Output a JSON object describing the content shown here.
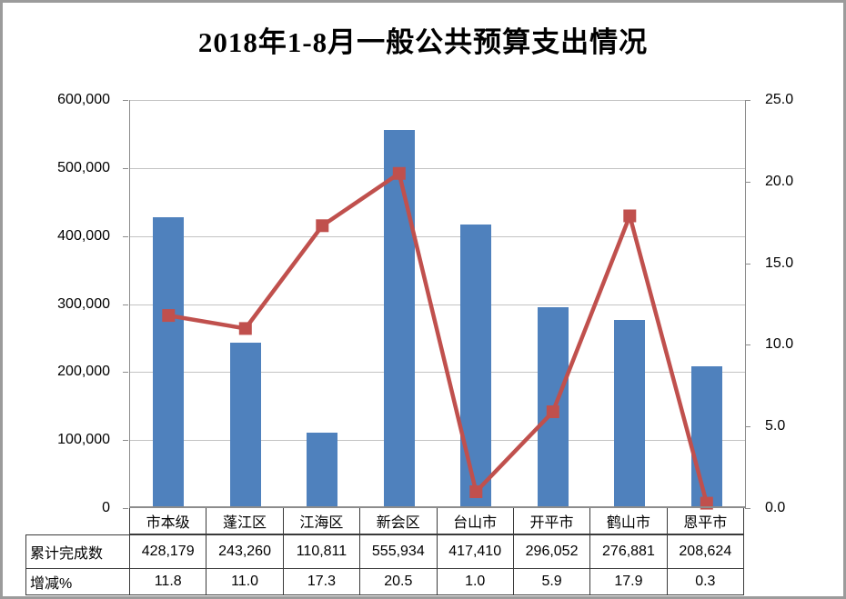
{
  "title": "2018年1-8月一般公共预算支出情况",
  "chart_data": {
    "type": "bar+line combo",
    "categories": [
      "市本级",
      "蓬江区",
      "江海区",
      "新会区",
      "台山市",
      "开平市",
      "鹤山市",
      "恩平市"
    ],
    "series": [
      {
        "name": "累计完成数",
        "type": "bar",
        "axis": "left",
        "values": [
          428179,
          243260,
          110811,
          555934,
          417410,
          296052,
          276881,
          208624
        ],
        "color": "#4F81BD"
      },
      {
        "name": "增减%",
        "type": "line",
        "axis": "right",
        "marker": "square",
        "values": [
          11.8,
          11.0,
          17.3,
          20.5,
          1.0,
          5.9,
          17.9,
          0.3
        ],
        "color": "#C0504D"
      }
    ],
    "title": "2018年1-8月一般公共预算支出情况",
    "left_axis": {
      "min": 0,
      "max": 600000,
      "tick_labels": [
        "600,000",
        "500,000",
        "400,000",
        "300,000",
        "200,000",
        "100,000",
        "0"
      ]
    },
    "right_axis": {
      "min": 0,
      "max": 25,
      "tick_labels": [
        "25.0",
        "20.0",
        "15.0",
        "10.0",
        "5.0",
        "0.0"
      ]
    },
    "grid": true,
    "legend": "none (data table below chart)"
  },
  "data_table": {
    "rows": [
      {
        "label": "累计完成数",
        "values": [
          "428,179",
          "243,260",
          "110,811",
          "555,934",
          "417,410",
          "296,052",
          "276,881",
          "208,624"
        ]
      },
      {
        "label": "增减%",
        "values": [
          "11.8",
          "11.0",
          "17.3",
          "20.5",
          "1.0",
          "5.9",
          "17.9",
          "0.3"
        ]
      }
    ]
  },
  "colors": {
    "bar": "#4F81BD",
    "line": "#C0504D",
    "gridline": "#C3C3C3",
    "axis_line": "#8C8C8C",
    "table_border": "#3A3A3A",
    "frame_border": "#9B9B9B",
    "background": "#FFFFFF",
    "text": "#000000"
  }
}
